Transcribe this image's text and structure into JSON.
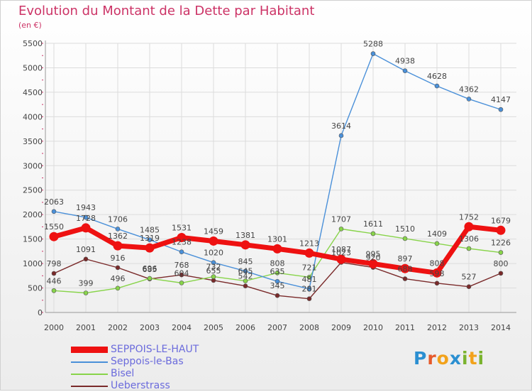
{
  "title": "Evolution du Montant de la Dette par Habitant",
  "subtitle": "(en €)",
  "logo": "Proxiti",
  "chart_data": {
    "type": "line",
    "x": [
      "2000",
      "2001",
      "2002",
      "2003",
      "2004",
      "2005",
      "2006",
      "2007",
      "2008",
      "2009",
      "2010",
      "2011",
      "2012",
      "2013",
      "2014"
    ],
    "ylim": [
      0,
      5500
    ],
    "yticks": [
      "0",
      "500",
      "1000",
      "1500",
      "2000",
      "2500",
      "3000",
      "3500",
      "4000",
      "4500",
      "5000",
      "5500"
    ],
    "grid": true,
    "legend_position": "bottom-left",
    "series": [
      {
        "name": "SEPPOIS-LE-HAUT",
        "color": "#ee1111",
        "values": [
          1550,
          1728,
          1362,
          1319,
          1531,
          1459,
          1381,
          1301,
          1213,
          1087,
          995,
          897,
          808,
          1752,
          1679
        ],
        "labels": [
          "1550",
          "1728",
          "1362",
          "1319",
          "1531",
          "1459",
          "1381",
          "1301",
          "1213",
          "1087",
          "995",
          "897",
          "808",
          "1752",
          "1679"
        ]
      },
      {
        "name": "Seppois-le-Bas",
        "color": "#4a90d9",
        "values": [
          2063,
          1943,
          1706,
          1485,
          1238,
          1020,
          845,
          635,
          481,
          3614,
          5288,
          4938,
          4628,
          4362,
          4147
        ],
        "labels": [
          "2063",
          "1943",
          "1706",
          "1485",
          "1238",
          "1020",
          "845",
          "635",
          "481",
          "3614",
          "5288",
          "4938",
          "4628",
          "4362",
          "4147"
        ]
      },
      {
        "name": "Bisel",
        "color": "#88d44a",
        "values": [
          446,
          399,
          496,
          696,
          604,
          732,
          645,
          808,
          721,
          1707,
          1611,
          1510,
          1409,
          1306,
          1226
        ],
        "labels": [
          "446",
          "399",
          "496",
          "696",
          "604",
          "732",
          "645",
          "808",
          "721",
          "1707",
          "1611",
          "1510",
          "1409",
          "1306",
          "1226"
        ]
      },
      {
        "name": "Ueberstrass",
        "color": "#7a2a2a",
        "values": [
          798,
          1091,
          916,
          685,
          768,
          655,
          542,
          345,
          281,
          1023,
          920,
          688,
          598,
          527,
          800
        ],
        "labels": [
          "798",
          "1091",
          "916",
          "685",
          "768",
          "655",
          "542",
          "345",
          "281",
          "1023",
          "920",
          "688",
          "598",
          "527",
          "800"
        ]
      }
    ]
  }
}
